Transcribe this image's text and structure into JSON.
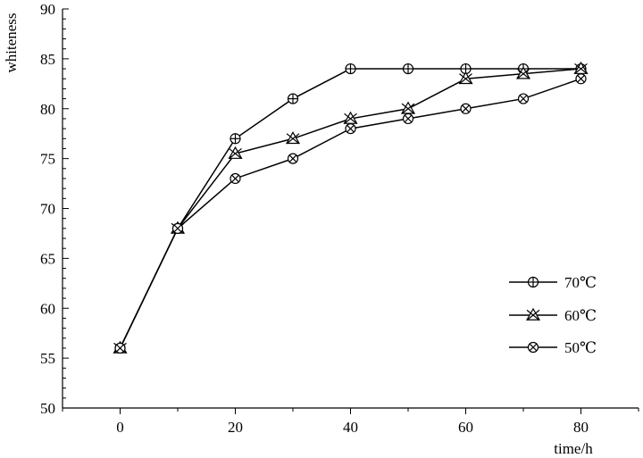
{
  "chart_data": {
    "type": "line",
    "title": "",
    "xlabel": "time/h",
    "ylabel": "whiteness",
    "xlim": [
      -10,
      90
    ],
    "ylim": [
      50,
      90
    ],
    "xticks": [
      0,
      20,
      40,
      60,
      80
    ],
    "yticks": [
      50,
      55,
      60,
      65,
      70,
      75,
      80,
      85,
      90
    ],
    "grid": false,
    "legend_position": "bottom-right",
    "series": [
      {
        "name": "70℃",
        "marker": "circle-plus",
        "x": [
          0,
          10,
          20,
          30,
          40,
          50,
          60,
          70,
          80
        ],
        "y": [
          56,
          68,
          77,
          81,
          84,
          84,
          84,
          84,
          84
        ]
      },
      {
        "name": "60℃",
        "marker": "triangle-x",
        "x": [
          0,
          10,
          20,
          30,
          40,
          50,
          60,
          70,
          80
        ],
        "y": [
          56,
          68,
          75.5,
          77,
          79,
          80,
          83,
          83.5,
          84
        ]
      },
      {
        "name": "50℃",
        "marker": "circle-x",
        "x": [
          0,
          10,
          20,
          30,
          40,
          50,
          60,
          70,
          80
        ],
        "y": [
          56,
          68,
          73,
          75,
          78,
          79,
          80,
          81,
          83
        ]
      }
    ]
  }
}
